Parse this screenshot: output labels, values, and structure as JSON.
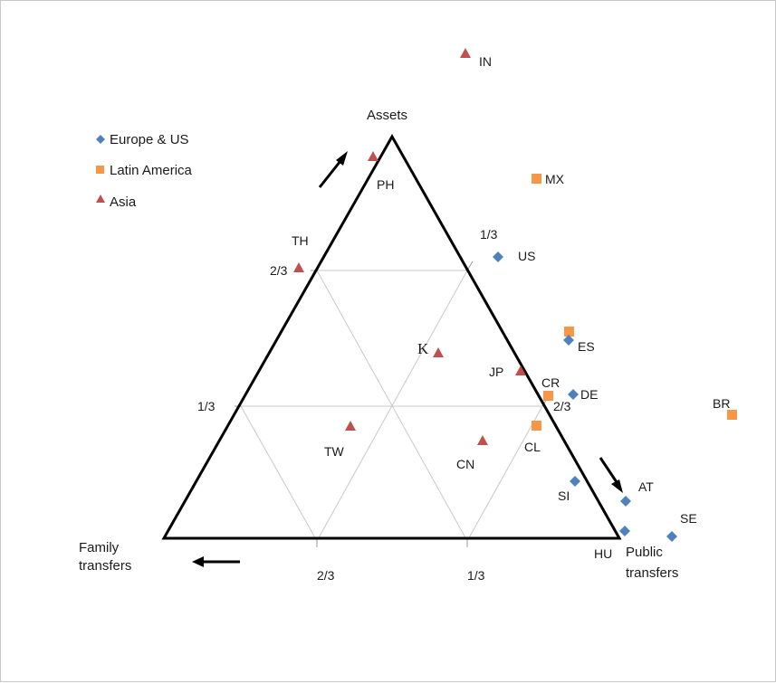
{
  "corners": {
    "top": "Assets",
    "left_line1": "Family",
    "left_line2": "transfers",
    "right_line1": "Public",
    "right_line2": "transfers"
  },
  "ticks": {
    "left_one_third": "1/3",
    "left_two_thirds": "2/3",
    "right_one_third": "1/3",
    "right_two_thirds": "2/3",
    "bottom_two_thirds": "2/3",
    "bottom_one_third": "1/3"
  },
  "center_mark": "K",
  "legend": [
    {
      "label": "Europe & US",
      "shape": "diamond",
      "color": "#4f81bd"
    },
    {
      "label": "Latin America",
      "shape": "square",
      "color": "#f79646"
    },
    {
      "label": "Asia",
      "shape": "triangle",
      "color": "#c0504d"
    }
  ],
  "points": [
    {
      "code": "IN",
      "group": "Asia"
    },
    {
      "code": "PH",
      "group": "Asia"
    },
    {
      "code": "MX",
      "group": "Latin America"
    },
    {
      "code": "TH",
      "group": "Asia"
    },
    {
      "code": "US",
      "group": "Europe & US"
    },
    {
      "code": "ES",
      "group": "Europe & US"
    },
    {
      "code": "ES",
      "group": "Latin America"
    },
    {
      "code": "JP",
      "group": "Asia"
    },
    {
      "code": "CR",
      "group": "Latin America"
    },
    {
      "code": "DE",
      "group": "Europe & US"
    },
    {
      "code": "BR",
      "group": "Latin America"
    },
    {
      "code": "TW",
      "group": "Asia"
    },
    {
      "code": "CN",
      "group": "Asia"
    },
    {
      "code": "CL",
      "group": "Latin America"
    },
    {
      "code": "SI",
      "group": "Europe & US"
    },
    {
      "code": "AT",
      "group": "Europe & US"
    },
    {
      "code": "SE",
      "group": "Europe & US"
    },
    {
      "code": "HU",
      "group": "Europe & US"
    },
    {
      "code": "K",
      "group": "Asia"
    }
  ]
}
